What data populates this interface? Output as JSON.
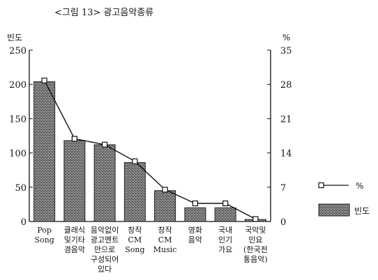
{
  "chart_data": {
    "type": "bar",
    "title": "<그림 13> 광고음악종류",
    "categories": [
      [
        "Pop",
        "Song"
      ],
      [
        "클래식",
        "및기타",
        "경음악"
      ],
      [
        "음악없이",
        "광고멘트",
        "만으로",
        "구성되어",
        "있다"
      ],
      [
        "창작",
        "CM",
        "Song"
      ],
      [
        "창작",
        "CM",
        "Music"
      ],
      [
        "영화",
        "음악"
      ],
      [
        "국내",
        "인기",
        "가요"
      ],
      [
        "국악및",
        "민요",
        "(한국전",
        "통음악)"
      ]
    ],
    "series": [
      {
        "name": "빈도",
        "type": "bar",
        "axis": "left",
        "values": [
          204,
          118,
          112,
          86,
          45,
          20,
          20,
          3
        ]
      },
      {
        "name": "%",
        "type": "line",
        "axis": "right",
        "values": [
          28.8,
          16.9,
          15.7,
          12.3,
          6.5,
          3.7,
          3.7,
          0.5
        ]
      }
    ],
    "left_axis": {
      "label": "빈도",
      "ylim": [
        0,
        250
      ],
      "ticks": [
        0,
        50,
        100,
        150,
        200,
        250
      ]
    },
    "right_axis": {
      "label": "%",
      "ylim": [
        0,
        35
      ],
      "ticks": [
        0,
        7,
        14,
        21,
        28,
        35
      ]
    },
    "legend": {
      "position": "right",
      "items": [
        {
          "label": "%",
          "kind": "line"
        },
        {
          "label": "빈도",
          "kind": "bar"
        }
      ]
    },
    "grid": false
  }
}
